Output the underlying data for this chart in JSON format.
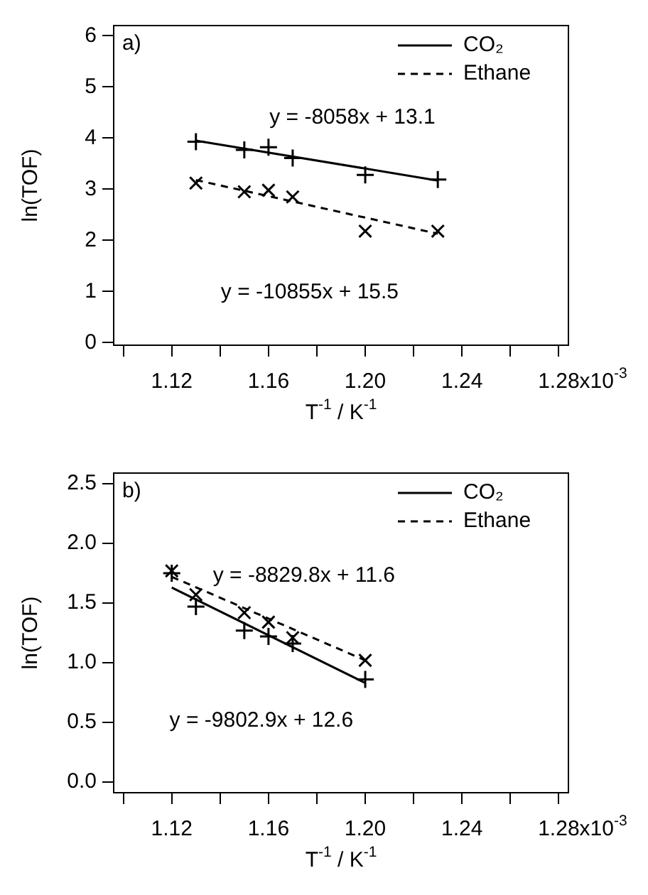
{
  "chart_data": [
    {
      "type": "scatter",
      "title": "a)",
      "xlabel": "T$^{-1}$ / K$^{-1}$",
      "ylabel": "ln(TOF)",
      "xlim": [
        1.096,
        1.284
      ],
      "ylim": [
        -0.05,
        6.2
      ],
      "xticks": [
        {
          "value": 1.1,
          "label": null
        },
        1.12,
        {
          "value": 1.14,
          "label": null
        },
        1.16,
        {
          "value": 1.18,
          "label": null
        },
        {
          "value": 1.2,
          "label": "1.20"
        },
        {
          "value": 1.22,
          "label": null
        },
        1.24,
        {
          "value": 1.26,
          "label": null
        },
        1.28
      ],
      "yticks": [
        0,
        1,
        2,
        3,
        4,
        5,
        6
      ],
      "legend": "top right",
      "series": [
        {
          "type": "scatter",
          "marker": "cross",
          "color": "#000000",
          "x": [
            1.13,
            1.15,
            1.16,
            1.17,
            1.2,
            1.23
          ],
          "values": [
            3.93,
            3.77,
            3.82,
            3.61,
            3.28,
            3.19
          ]
        },
        {
          "type": "scatter",
          "marker": "x",
          "color": "#000000",
          "x": [
            1.13,
            1.15,
            1.16,
            1.17,
            1.2,
            1.23
          ],
          "values": [
            3.12,
            2.95,
            2.98,
            2.85,
            2.18,
            2.18
          ]
        },
        {
          "type": "line",
          "name": "CO₂",
          "line_style": "solid",
          "marker": "none",
          "color": "#000000",
          "x": [
            1.13,
            1.23
          ],
          "values": [
            3.95,
            3.17
          ]
        },
        {
          "type": "line",
          "name": "Ethane",
          "line_style": "dashed",
          "marker": "none",
          "color": "#000000",
          "x": [
            1.13,
            1.23
          ],
          "values": [
            3.18,
            2.13
          ]
        }
      ],
      "annotations": [
        "y = -8058x + 13.1",
        "y = -10855x + 15.5",
        "x10$^{-3}$"
      ]
    },
    {
      "type": "scatter",
      "title": "b)",
      "xlabel": "T$^{-1}$ / K$^{-1}$",
      "ylabel": "ln(TOF)",
      "xlim": [
        1.096,
        1.284
      ],
      "ylim": [
        -0.09,
        2.59
      ],
      "xticks": [
        {
          "value": 1.1,
          "label": null
        },
        1.12,
        {
          "value": 1.14,
          "label": null
        },
        1.16,
        {
          "value": 1.18,
          "label": null
        },
        {
          "value": 1.2,
          "label": "1.20"
        },
        {
          "value": 1.22,
          "label": null
        },
        1.24,
        {
          "value": 1.26,
          "label": null
        },
        1.28
      ],
      "yticks": [
        {
          "value": 0,
          "label": "0.0"
        },
        0.5,
        {
          "value": 1,
          "label": "1.0"
        },
        1.5,
        {
          "value": 2,
          "label": "2.0"
        },
        2.5
      ],
      "legend": "top right",
      "series": [
        {
          "type": "scatter",
          "marker": "cross",
          "color": "#000000",
          "x": [
            1.12,
            1.13,
            1.15,
            1.16,
            1.17,
            1.2
          ],
          "values": [
            1.75,
            1.47,
            1.27,
            1.22,
            1.16,
            0.86
          ]
        },
        {
          "type": "scatter",
          "marker": "x",
          "color": "#000000",
          "x": [
            1.12,
            1.13,
            1.15,
            1.16,
            1.17,
            1.2
          ],
          "values": [
            1.77,
            1.57,
            1.42,
            1.34,
            1.21,
            1.02
          ]
        },
        {
          "type": "line",
          "name": "CO₂",
          "line_style": "solid",
          "marker": "none",
          "color": "#000000",
          "x": [
            1.12,
            1.2
          ],
          "values": [
            1.63,
            0.83
          ]
        },
        {
          "type": "line",
          "name": "Ethane",
          "line_style": "dashed",
          "marker": "none",
          "color": "#000000",
          "x": [
            1.12,
            1.2
          ],
          "values": [
            1.72,
            1.02
          ]
        }
      ],
      "annotations": [
        "y = -8829.8x + 11.6",
        "y = -9802.9x + 12.6",
        "x10$^{-3}$"
      ]
    }
  ]
}
